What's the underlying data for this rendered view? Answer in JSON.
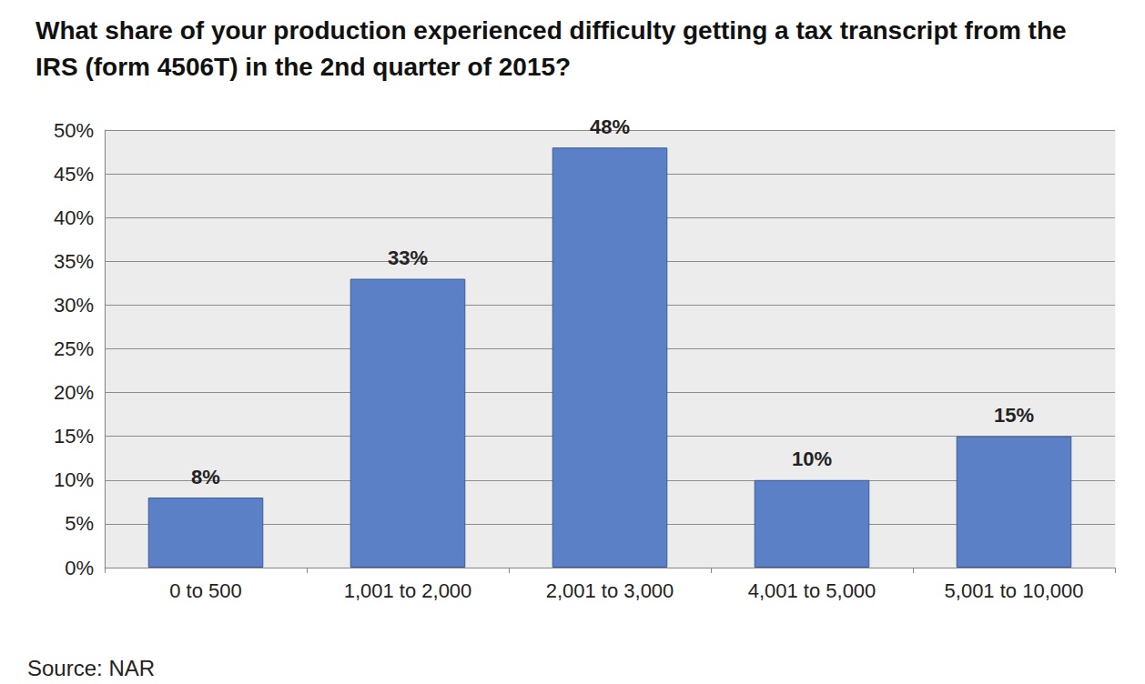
{
  "chart_data": {
    "type": "bar",
    "title": "What share of your production experienced difficulty getting a tax transcript from the IRS (form 4506T) in the 2nd quarter of 2015?",
    "categories": [
      "0 to 500",
      "1,001 to 2,000",
      "2,001 to 3,000",
      "4,001 to 5,000",
      "5,001 to 10,000"
    ],
    "values": [
      8,
      33,
      48,
      10,
      15
    ],
    "value_labels": [
      "8%",
      "33%",
      "48%",
      "10%",
      "15%"
    ],
    "data_labels": true,
    "color": "#5b80c6",
    "ylim": [
      0,
      50
    ],
    "yticks": [
      {
        "value": 0,
        "label": "0%"
      },
      {
        "value": 5,
        "label": "5%"
      },
      {
        "value": 10,
        "label": "10%"
      },
      {
        "value": 15,
        "label": "15%"
      },
      {
        "value": 20,
        "label": "20%"
      },
      {
        "value": 25,
        "label": "25%"
      },
      {
        "value": 30,
        "label": "30%"
      },
      {
        "value": 35,
        "label": "35%"
      },
      {
        "value": 40,
        "label": "40%"
      },
      {
        "value": 45,
        "label": "45%"
      },
      {
        "value": 50,
        "label": "50%"
      }
    ],
    "grid": true,
    "source": "Source: NAR"
  }
}
